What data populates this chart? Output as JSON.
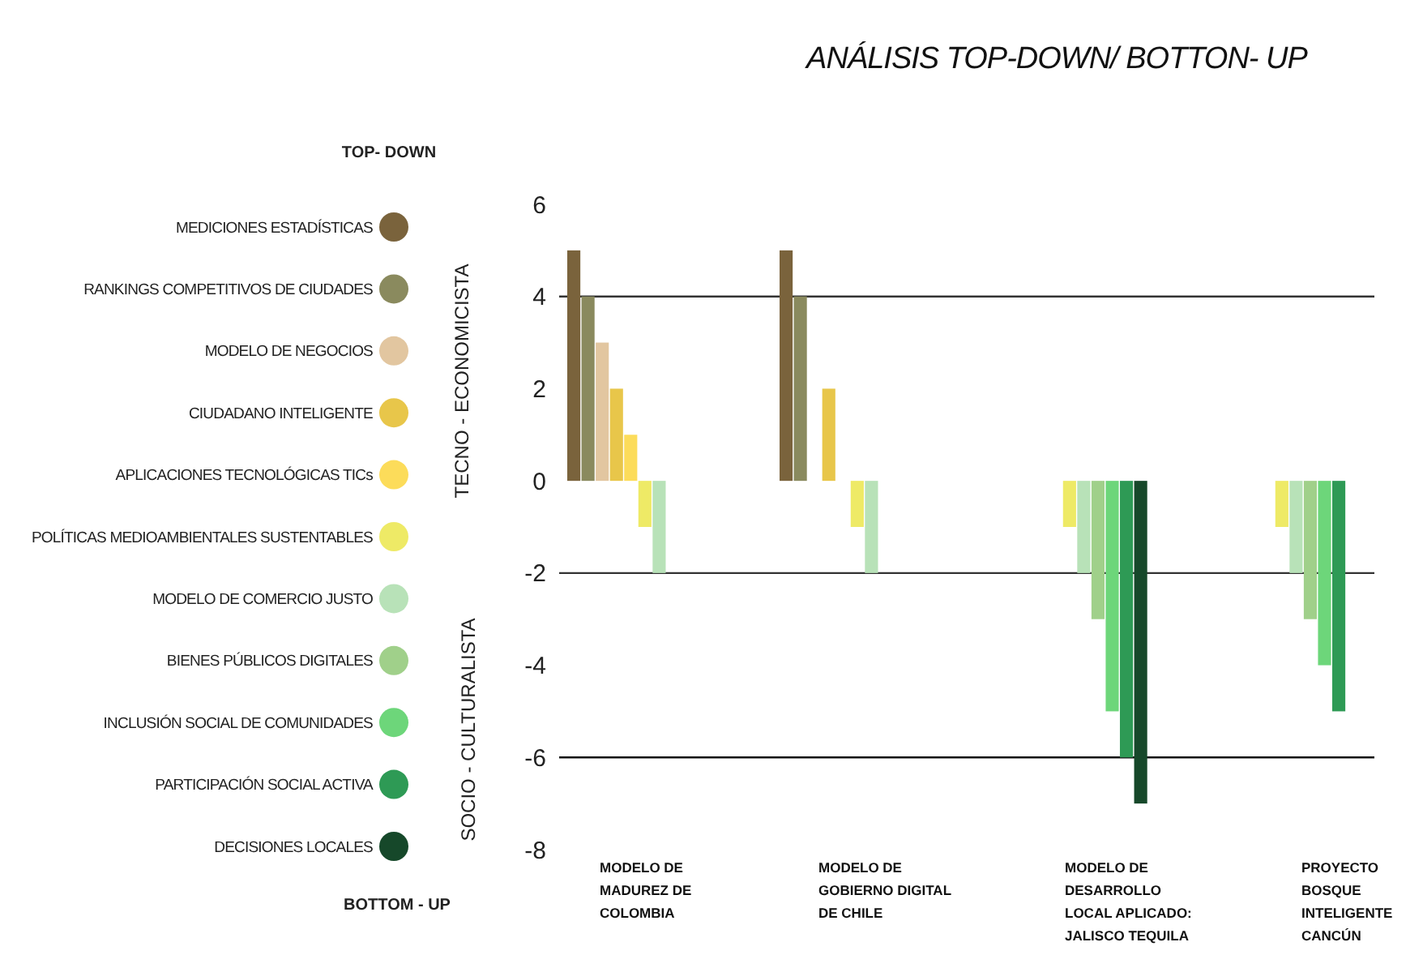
{
  "chart_data": {
    "type": "bar",
    "title": "ANÁLISIS TOP-DOWN/ BOTTON- UP",
    "categories": [
      "MODELO DE MADUREZ DE COLOMBIA",
      "MODELO DE GOBIERNO DIGITAL DE CHILE",
      "MODELO DE DESARROLLO LOCAL APLICADO: JALISCO TEQUILA",
      "PROYECTO BOSQUE INTELIGENTE CANCÚN"
    ],
    "series": [
      {
        "name": "MEDICIONES ESTADÍSTICAS",
        "color": "#7a633c",
        "values": [
          5,
          5,
          null,
          null
        ]
      },
      {
        "name": "RANKINGS COMPETITIVOS DE CIUDADES",
        "color": "#8a8a5e",
        "values": [
          4,
          4,
          null,
          null
        ]
      },
      {
        "name": "MODELO DE NEGOCIOS",
        "color": "#e2c6a0",
        "values": [
          3,
          null,
          null,
          null
        ]
      },
      {
        "name": "CIUDADANO INTELIGENTE",
        "color": "#e8c64a",
        "values": [
          2,
          2,
          null,
          null
        ]
      },
      {
        "name": "APLICACIONES TECNOLÓGICAS TICs",
        "color": "#fcdc5a",
        "values": [
          1,
          null,
          null,
          null
        ]
      },
      {
        "name": "POLÍTICAS MEDIOAMBIENTALES SUSTENTABLES",
        "color": "#eeea66",
        "values": [
          -1,
          -1,
          -1,
          -1
        ]
      },
      {
        "name": "MODELO DE COMERCIO JUSTO",
        "color": "#b8e2b8",
        "values": [
          -2,
          -2,
          -2,
          -2
        ]
      },
      {
        "name": "BIENES PÚBLICOS DIGITALES",
        "color": "#a0d08a",
        "values": [
          null,
          null,
          -3,
          -3
        ]
      },
      {
        "name": "INCLUSIÓN SOCIAL DE COMUNIDADES",
        "color": "#6dd67a",
        "values": [
          null,
          null,
          -5,
          -4
        ]
      },
      {
        "name": "PARTICIPACIÓN SOCIAL ACTIVA",
        "color": "#2e9a55",
        "values": [
          null,
          null,
          -6,
          -5
        ]
      },
      {
        "name": "DECISIONES LOCALES",
        "color": "#16482a",
        "values": [
          null,
          null,
          -7,
          null
        ]
      }
    ],
    "ylim": [
      -8,
      6
    ],
    "yticks": [
      -8,
      -6,
      -4,
      -2,
      0,
      2,
      4,
      6
    ],
    "ref_lines": [
      {
        "axis": "y",
        "value": 4,
        "color": "#333333"
      },
      {
        "axis": "y",
        "value": -2,
        "color": "#333333"
      },
      {
        "axis": "y",
        "value": -6,
        "color": "#111111"
      }
    ],
    "legend": "left",
    "annotations": [
      "TOP- DOWN",
      "BOTTOM - UP",
      "TECNO - ECONOMICISTA",
      "SOCIO - CULTURALISTA"
    ]
  }
}
